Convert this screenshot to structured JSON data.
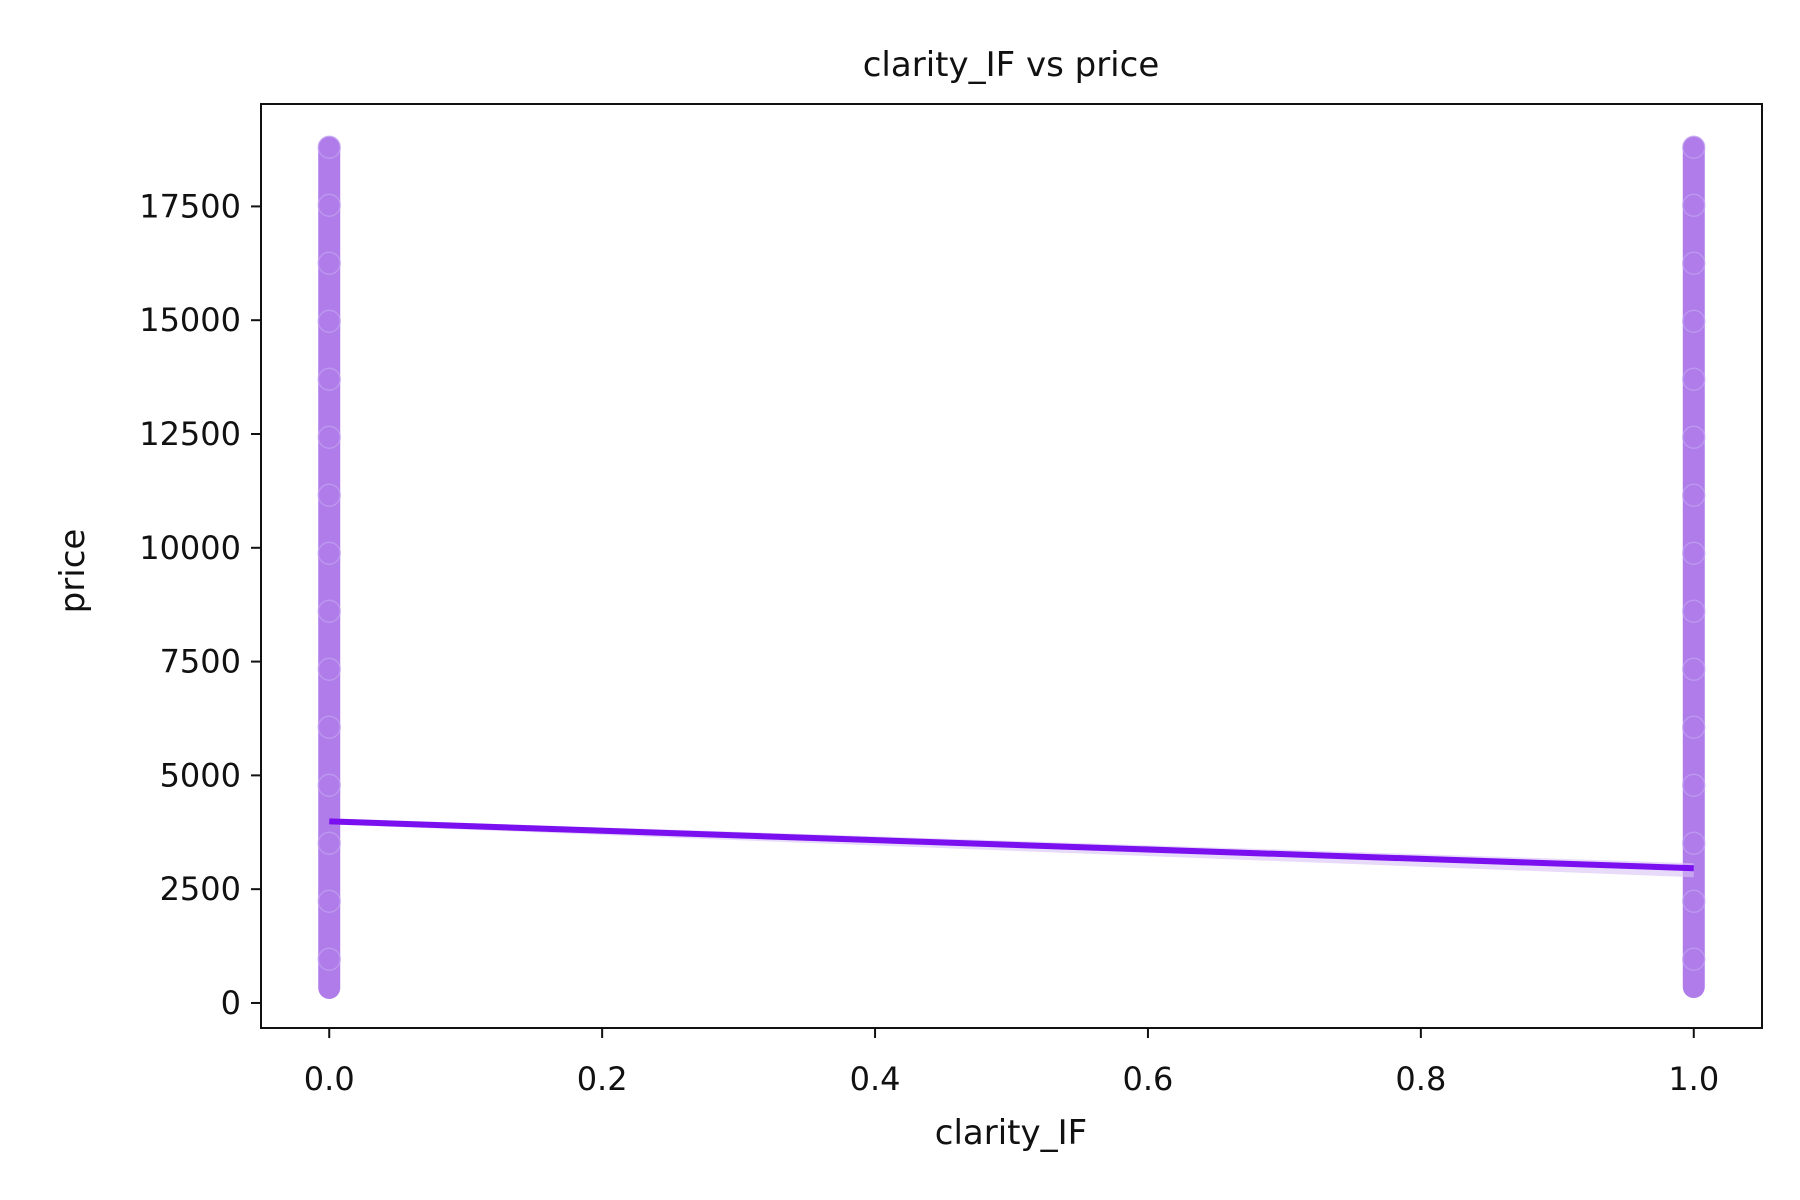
{
  "chart_data": {
    "type": "scatter",
    "title": "clarity_IF vs price",
    "xlabel": "clarity_IF",
    "ylabel": "price",
    "xlim": [
      -0.05,
      1.05
    ],
    "ylim": [
      -550,
      19750
    ],
    "xticks": [
      0.0,
      0.2,
      0.4,
      0.6,
      0.8,
      1.0
    ],
    "xtick_labels": [
      "0.0",
      "0.2",
      "0.4",
      "0.6",
      "0.8",
      "1.0"
    ],
    "yticks": [
      0,
      2500,
      5000,
      7500,
      10000,
      12500,
      15000,
      17500
    ],
    "ytick_labels": [
      "0",
      "2500",
      "5000",
      "7500",
      "10000",
      "12500",
      "15000",
      "17500"
    ],
    "grid": false,
    "legend": "none",
    "series": [
      {
        "kind": "points",
        "x_value": 0,
        "y_range": [
          330,
          18800
        ]
      },
      {
        "kind": "points",
        "x_value": 1,
        "y_range": [
          350,
          18800
        ]
      }
    ],
    "regression_line": {
      "x": [
        0,
        1
      ],
      "y": [
        3990,
        2960
      ]
    },
    "colors": {
      "points": "#a66ee8",
      "line": "#7a0ff0",
      "confidence_band": "#d9c2f5"
    }
  }
}
